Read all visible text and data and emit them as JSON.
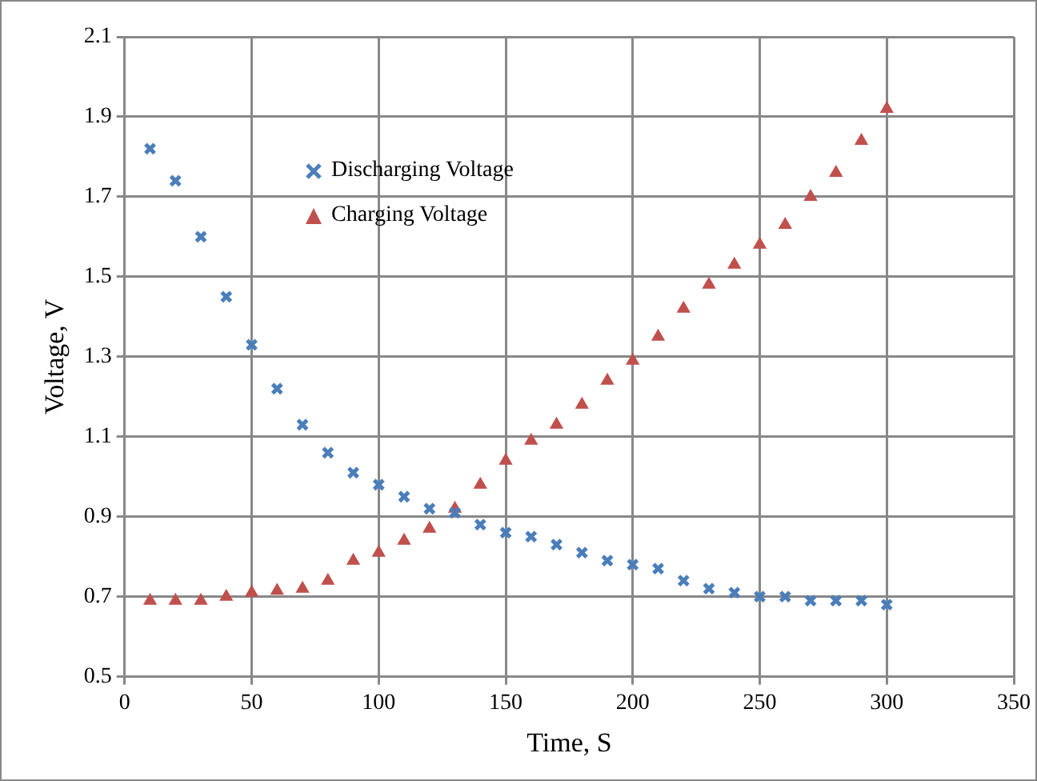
{
  "chart_data": {
    "type": "scatter",
    "xlabel": "Time, S",
    "ylabel": "Voltage, V",
    "x": [
      10,
      20,
      30,
      40,
      50,
      60,
      70,
      80,
      90,
      100,
      110,
      120,
      130,
      140,
      150,
      160,
      170,
      180,
      190,
      200,
      210,
      220,
      230,
      240,
      250,
      260,
      270,
      280,
      290,
      300
    ],
    "series": [
      {
        "name": "Discharging Voltage",
        "color": "#4a7ebb",
        "marker": "cross",
        "values": [
          1.82,
          1.74,
          1.6,
          1.45,
          1.33,
          1.22,
          1.13,
          1.06,
          1.01,
          0.98,
          0.95,
          0.92,
          0.91,
          0.88,
          0.86,
          0.85,
          0.83,
          0.81,
          0.79,
          0.78,
          0.77,
          0.74,
          0.72,
          0.71,
          0.7,
          0.7,
          0.69,
          0.69,
          0.69,
          0.68
        ]
      },
      {
        "name": "Charging Voltage",
        "color": "#c0504d",
        "marker": "triangle",
        "values": [
          0.69,
          0.69,
          0.69,
          0.7,
          0.71,
          0.715,
          0.72,
          0.74,
          0.79,
          0.81,
          0.84,
          0.87,
          0.92,
          0.98,
          1.04,
          1.09,
          1.13,
          1.18,
          1.24,
          1.29,
          1.35,
          1.42,
          1.48,
          1.53,
          1.58,
          1.63,
          1.7,
          1.76,
          1.84,
          1.92
        ]
      }
    ],
    "xlim": [
      0,
      350
    ],
    "xticks": [
      0,
      50,
      100,
      150,
      200,
      250,
      300,
      350
    ],
    "ylim": [
      0.5,
      2.1
    ],
    "yticks": [
      {
        "value": 0.5,
        "label": "0.5"
      },
      {
        "value": 0.7,
        "label": "0.7"
      },
      {
        "value": 0.9,
        "label": "0.9"
      },
      {
        "value": 1.1,
        "label": "1.1"
      },
      {
        "value": 1.3,
        "label": "1.3"
      },
      {
        "value": 1.5,
        "label": "1.5"
      },
      {
        "value": 1.7,
        "label": "1.7"
      },
      {
        "value": 1.9,
        "label": "1.9"
      },
      {
        "value": 2.1,
        "label": "2.1"
      }
    ],
    "grid": true,
    "legend": "top left"
  }
}
